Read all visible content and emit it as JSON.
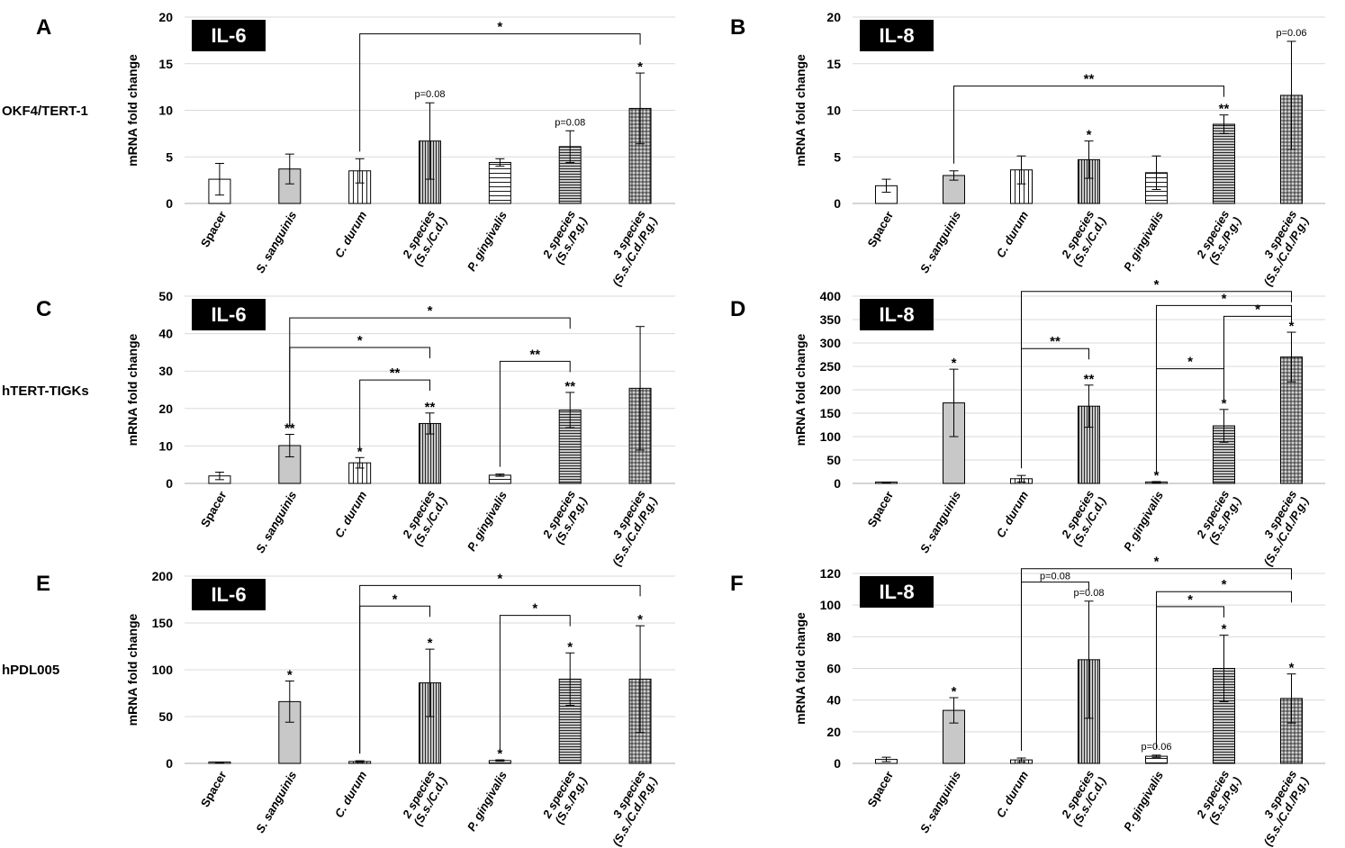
{
  "figure": {
    "row_labels": [
      "OKF4/TERT-1",
      "hTERT-TIGKs",
      "hPDL005"
    ]
  },
  "categories": [
    [
      "Spacer"
    ],
    [
      "S. sanguinis"
    ],
    [
      "C. durum"
    ],
    [
      "2 species",
      "(S.s./C.d.)"
    ],
    [
      "P. gingivalis"
    ],
    [
      "2 species",
      "(S.s./P.g.)"
    ],
    [
      "3 species",
      "(S.s./C.d./P.g.)"
    ]
  ],
  "colors": {
    "bar_outline": "#000000",
    "filled_bar": "#c8c8c8",
    "grid": "#d9d9d9",
    "badge_bg": "#000000",
    "badge_text": "#ffffff"
  },
  "chart_data": [
    {
      "panel": "A",
      "type": "bar",
      "cytokine": "IL-6",
      "row_label": "OKF4/TERT-1",
      "ylabel": "mRNA fold change",
      "ylim": [
        0,
        20
      ],
      "yticks": [
        0,
        5,
        10,
        15,
        20
      ],
      "values": [
        2.6,
        3.7,
        3.5,
        6.7,
        4.4,
        6.1,
        10.2
      ],
      "errors": [
        1.7,
        1.6,
        1.3,
        4.1,
        0.4,
        1.7,
        3.8
      ],
      "marks": [
        "",
        "",
        "",
        "p=0.08",
        "",
        "p=0.08",
        "*"
      ],
      "brackets": [
        {
          "from": 2,
          "to": 6,
          "level": 18.2,
          "label": "*"
        }
      ]
    },
    {
      "panel": "B",
      "type": "bar",
      "cytokine": "IL-8",
      "row_label": "OKF4/TERT-1",
      "ylabel": "mRNA fold change",
      "ylim": [
        0,
        20
      ],
      "yticks": [
        0,
        5,
        10,
        15,
        20
      ],
      "values": [
        1.9,
        3.0,
        3.6,
        4.7,
        3.3,
        8.5,
        11.6
      ],
      "errors": [
        0.7,
        0.5,
        1.5,
        2.0,
        1.8,
        1.0,
        5.8
      ],
      "marks": [
        "",
        "",
        "",
        "*",
        "",
        "**",
        "p=0.06"
      ],
      "brackets": [
        {
          "from": 1,
          "to": 5,
          "level": 12.6,
          "label": "**"
        }
      ]
    },
    {
      "panel": "C",
      "type": "bar",
      "cytokine": "IL-6",
      "row_label": "hTERT-TIGKs",
      "ylabel": "mRNA fold change",
      "ylim": [
        0,
        50
      ],
      "yticks": [
        0,
        10,
        20,
        30,
        40,
        50
      ],
      "values": [
        2.0,
        10.1,
        5.5,
        16.0,
        2.2,
        19.6,
        25.4
      ],
      "errors": [
        1.0,
        3.0,
        1.4,
        2.8,
        0.3,
        4.7,
        16.5
      ],
      "marks": [
        "",
        "**",
        "*",
        "**",
        "",
        "**",
        ""
      ],
      "brackets": [
        {
          "from": 1,
          "to": 5,
          "level": 44.2,
          "label": "*"
        },
        {
          "from": 1,
          "to": 3,
          "level": 36.3,
          "label": "*"
        },
        {
          "from": 2,
          "to": 3,
          "level": 27.6,
          "label": "**"
        },
        {
          "from": 4,
          "to": 5,
          "level": 32.6,
          "label": "**"
        }
      ]
    },
    {
      "panel": "D",
      "type": "bar",
      "cytokine": "IL-8",
      "row_label": "hTERT-TIGKs",
      "ylabel": "mRNA fold change",
      "ylim": [
        0,
        400
      ],
      "yticks": [
        0,
        50,
        100,
        150,
        200,
        250,
        300,
        350,
        400
      ],
      "values": [
        2,
        172,
        10,
        165,
        3,
        123,
        270
      ],
      "errors": [
        1,
        72,
        7,
        45,
        1,
        35,
        53
      ],
      "marks": [
        "",
        "*",
        "",
        "**",
        "*",
        "*",
        "*"
      ],
      "brackets": [
        {
          "from": 2,
          "to": 6,
          "level": 410,
          "label": "*"
        },
        {
          "from": 4,
          "to": 6,
          "level": 380,
          "label": "*"
        },
        {
          "from": 5,
          "to": 6,
          "level": 357,
          "label": "*"
        },
        {
          "from": 2,
          "to": 3,
          "level": 288,
          "label": "**"
        },
        {
          "from": 4,
          "to": 5,
          "level": 245,
          "label": "*"
        }
      ]
    },
    {
      "panel": "E",
      "type": "bar",
      "cytokine": "IL-6",
      "row_label": "hPDL005",
      "ylabel": "mRNA fold change",
      "ylim": [
        0,
        200
      ],
      "yticks": [
        0,
        50,
        100,
        150,
        200
      ],
      "values": [
        1,
        66,
        2,
        86,
        3,
        90,
        90
      ],
      "errors": [
        0.5,
        22,
        0.8,
        36,
        0.8,
        28,
        57
      ],
      "marks": [
        "",
        "*",
        "",
        "*",
        "*",
        "*",
        "*"
      ],
      "brackets": [
        {
          "from": 2,
          "to": 6,
          "level": 190,
          "label": "*"
        },
        {
          "from": 2,
          "to": 3,
          "level": 168,
          "label": "*"
        },
        {
          "from": 4,
          "to": 5,
          "level": 158,
          "label": "*"
        }
      ]
    },
    {
      "panel": "F",
      "type": "bar",
      "cytokine": "IL-8",
      "row_label": "hPDL005",
      "ylabel": "mRNA fold change",
      "ylim": [
        0,
        120
      ],
      "yticks": [
        0,
        20,
        40,
        60,
        80,
        100,
        120
      ],
      "values": [
        2.5,
        33.5,
        2.2,
        65.5,
        4.5,
        60,
        41
      ],
      "errors": [
        1.4,
        8,
        1.2,
        37,
        0.7,
        21,
        15.5
      ],
      "marks": [
        "",
        "*",
        "",
        "p=0.08",
        "p=0.06",
        "*",
        "*"
      ],
      "brackets": [
        {
          "from": 2,
          "to": 6,
          "level": 123,
          "label": "*"
        },
        {
          "from": 2,
          "to": 3,
          "level": 114.5,
          "label": "p=0.08"
        },
        {
          "from": 4,
          "to": 6,
          "level": 108.5,
          "label": "*"
        },
        {
          "from": 4,
          "to": 5,
          "level": 99,
          "label": "*"
        }
      ]
    }
  ]
}
